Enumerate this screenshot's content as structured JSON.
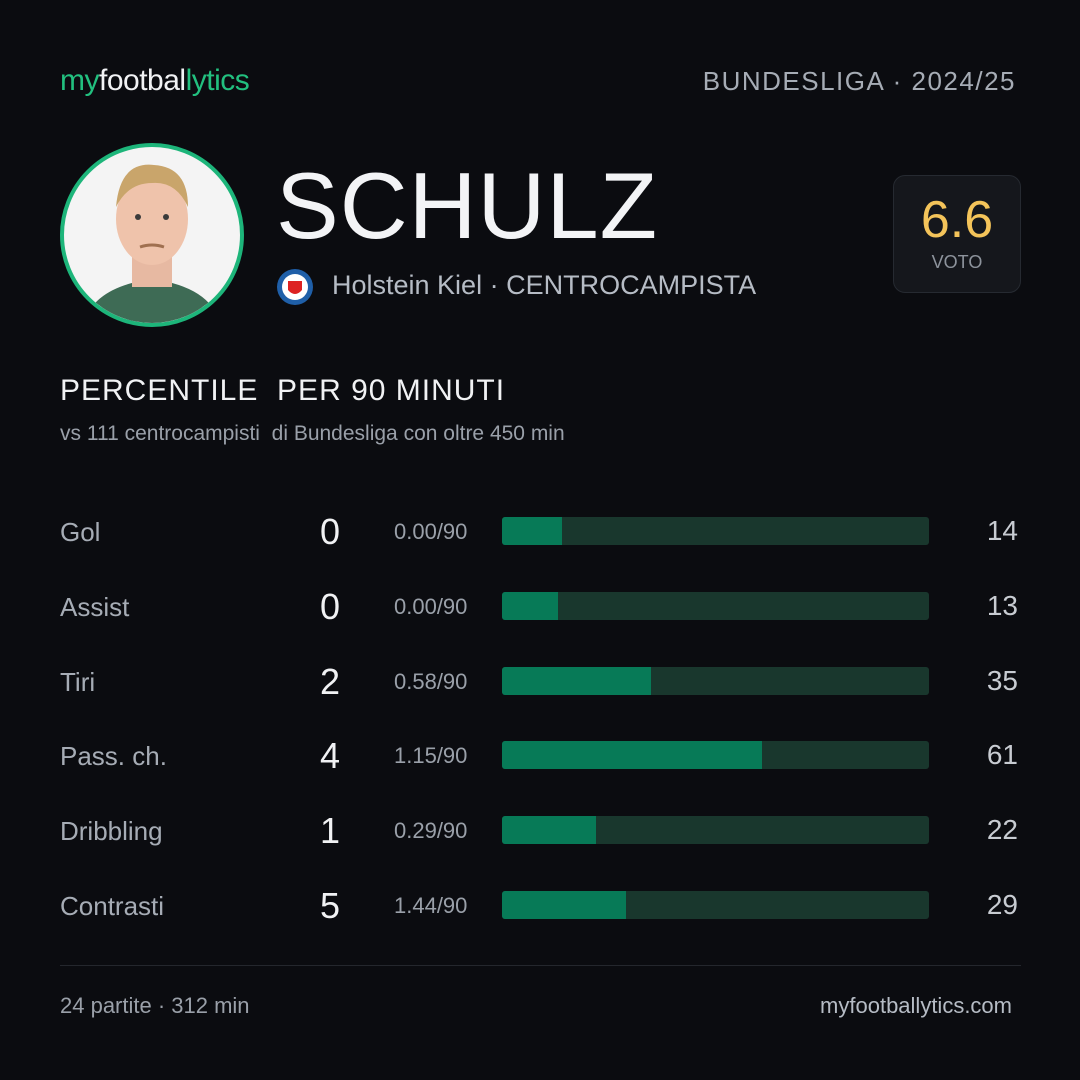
{
  "brand": {
    "parts": [
      "my",
      "footbal",
      "lytics"
    ]
  },
  "header": {
    "league": "BUNDESLIGA · 2024/25"
  },
  "player": {
    "name": "SCHULZ",
    "team": "Holstein Kiel",
    "position": "· CENTROCAMPISTA",
    "rating": "6.6",
    "rating_label": "VOTO"
  },
  "section": {
    "title": "PERCENTILE  PER 90 MINUTI",
    "subtitle": "vs 111 centrocampisti  di Bundesliga con oltre 450 min"
  },
  "stats": [
    {
      "label": "Gol",
      "total": 0,
      "per90": "0.00/90",
      "percentile": 14
    },
    {
      "label": "Assist",
      "total": 0,
      "per90": "0.00/90",
      "percentile": 13
    },
    {
      "label": "Tiri",
      "total": 2,
      "per90": "0.58/90",
      "percentile": 35
    },
    {
      "label": "Pass. ch.",
      "total": 4,
      "per90": "1.15/90",
      "percentile": 61
    },
    {
      "label": "Dribbling",
      "total": 1,
      "per90": "0.29/90",
      "percentile": 22
    },
    {
      "label": "Contrasti",
      "total": 5,
      "per90": "1.44/90",
      "percentile": 29
    }
  ],
  "footer": {
    "left": "24 partite · 312 min",
    "right": "myfootballytics.com"
  }
}
